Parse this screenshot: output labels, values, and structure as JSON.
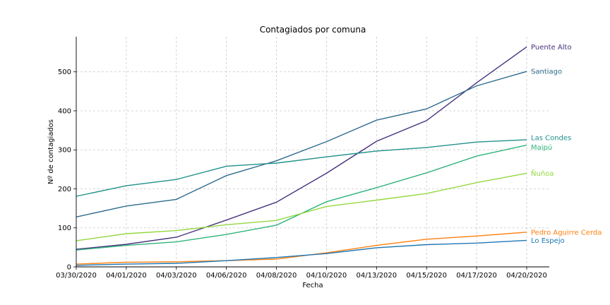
{
  "chart_data": {
    "type": "line",
    "title": "Contagiados por comuna",
    "xlabel": "Fecha",
    "ylabel": "Nº de contagiados",
    "categories": [
      "03/30/2020",
      "04/01/2020",
      "04/03/2020",
      "04/06/2020",
      "04/08/2020",
      "04/10/2020",
      "04/13/2020",
      "04/15/2020",
      "04/17/2020",
      "04/20/2020"
    ],
    "yticks": [
      0,
      100,
      200,
      300,
      400,
      500
    ],
    "ylim": [
      0,
      590
    ],
    "grid": true,
    "legend": "end-of-line labels",
    "series": [
      {
        "name": "Puente Alto",
        "color": "#46327e",
        "values": [
          45,
          58,
          76,
          120,
          166,
          240,
          322,
          375,
          472,
          564
        ]
      },
      {
        "name": "Santiago",
        "color": "#2f6b8e",
        "values": [
          128,
          156,
          173,
          234,
          272,
          321,
          376,
          405,
          464,
          501
        ]
      },
      {
        "name": "Las Condes",
        "color": "#21918c",
        "values": [
          181,
          208,
          224,
          258,
          266,
          282,
          297,
          306,
          320,
          326
        ]
      },
      {
        "name": "Maipú",
        "color": "#2fb47c",
        "values": [
          43,
          55,
          64,
          83,
          107,
          167,
          203,
          241,
          284,
          312
        ]
      },
      {
        "name": "Ñuñoa",
        "color": "#94d840",
        "values": [
          67,
          85,
          93,
          108,
          119,
          155,
          171,
          188,
          216,
          240
        ]
      },
      {
        "name": "Pedro Aguirre Cerda",
        "color": "#ff7f0e",
        "values": [
          7,
          12,
          13,
          16,
          20,
          36,
          55,
          71,
          79,
          89
        ]
      },
      {
        "name": "Lo Espejo",
        "color": "#1f77b4",
        "values": [
          4,
          7,
          9,
          16,
          24,
          34,
          49,
          57,
          61,
          68
        ]
      }
    ]
  }
}
